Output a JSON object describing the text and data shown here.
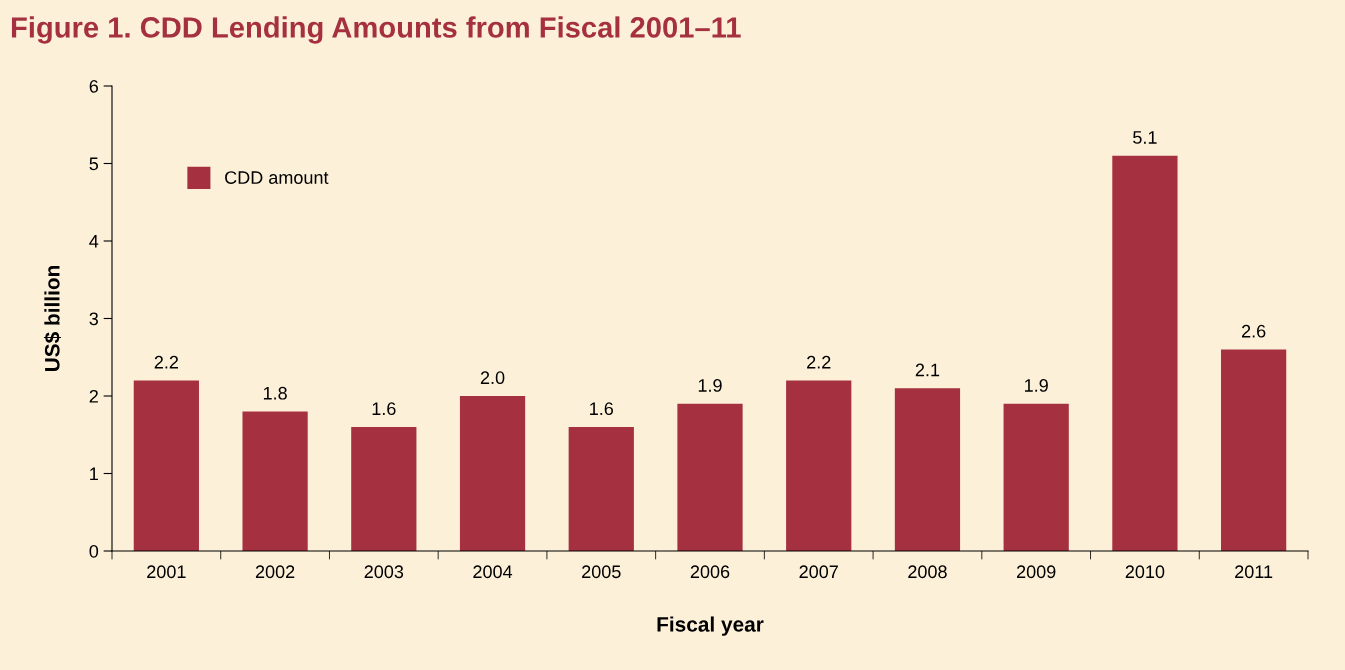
{
  "chart_data": {
    "type": "bar",
    "title": "Figure 1. CDD Lending Amounts from Fiscal 2001–11",
    "xlabel": "Fiscal year",
    "ylabel": "US$ billion",
    "categories": [
      "2001",
      "2002",
      "2003",
      "2004",
      "2005",
      "2006",
      "2007",
      "2008",
      "2009",
      "2010",
      "2011"
    ],
    "series": [
      {
        "name": "CDD amount",
        "color": "#a5303f",
        "values": [
          2.2,
          1.8,
          1.6,
          2.0,
          1.6,
          1.9,
          2.2,
          2.1,
          1.9,
          5.1,
          2.6
        ],
        "value_labels": [
          "2.2",
          "1.8",
          "1.6",
          "2.0",
          "1.6",
          "1.9",
          "2.2",
          "2.1",
          "1.9",
          "5.1",
          "2.6"
        ]
      }
    ],
    "ylim": [
      0,
      6
    ],
    "yticks": [
      0,
      1,
      2,
      3,
      4,
      5,
      6
    ],
    "grid": false,
    "legend": "top left"
  }
}
